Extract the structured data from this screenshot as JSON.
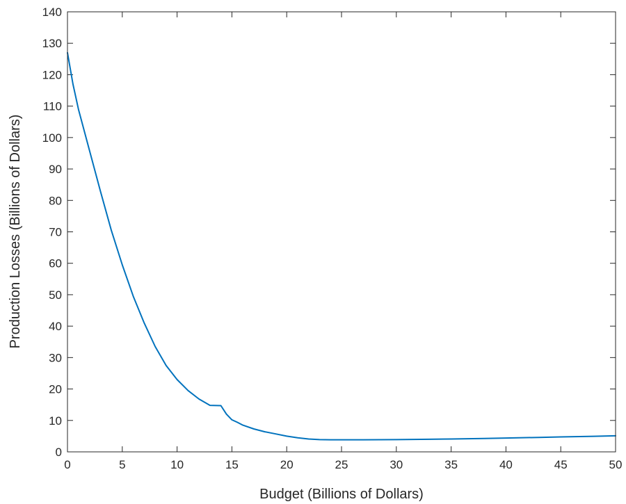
{
  "chart_data": {
    "type": "line",
    "title": "",
    "xlabel": "Budget (Billions of Dollars)",
    "ylabel": "Production Losses (Billions of Dollars)",
    "xlim": [
      0,
      50
    ],
    "ylim": [
      0,
      140
    ],
    "xticks": [
      0,
      5,
      10,
      15,
      20,
      25,
      30,
      35,
      40,
      45,
      50
    ],
    "yticks": [
      0,
      10,
      20,
      30,
      40,
      50,
      60,
      70,
      80,
      90,
      100,
      110,
      120,
      130,
      140
    ],
    "xtick_labels": [
      "0",
      "5",
      "10",
      "15",
      "20",
      "25",
      "30",
      "35",
      "40",
      "45",
      "50"
    ],
    "ytick_labels": [
      "0",
      "10",
      "20",
      "30",
      "40",
      "50",
      "60",
      "70",
      "80",
      "90",
      "100",
      "110",
      "120",
      "130",
      "140"
    ],
    "grid": false,
    "box": true,
    "series": [
      {
        "color": "#0072BD",
        "x": [
          0,
          0.5,
          1,
          2,
          3,
          4,
          5,
          6,
          7,
          8,
          9,
          10,
          11,
          12,
          13,
          14,
          14.5,
          15,
          15.5,
          16,
          17,
          18,
          19,
          20,
          21,
          22,
          23,
          24,
          25,
          27,
          30,
          33,
          35,
          38,
          40,
          43,
          45,
          48,
          50
        ],
        "y": [
          127,
          117,
          109,
          96,
          83,
          70.5,
          59.5,
          49.5,
          41,
          33.5,
          27.5,
          23,
          19.5,
          16.8,
          14.8,
          14.7,
          12,
          10.2,
          9.4,
          8.5,
          7.3,
          6.4,
          5.7,
          5.0,
          4.5,
          4.1,
          3.9,
          3.85,
          3.85,
          3.85,
          3.9,
          4.0,
          4.1,
          4.25,
          4.4,
          4.6,
          4.75,
          4.95,
          5.1
        ]
      }
    ]
  }
}
